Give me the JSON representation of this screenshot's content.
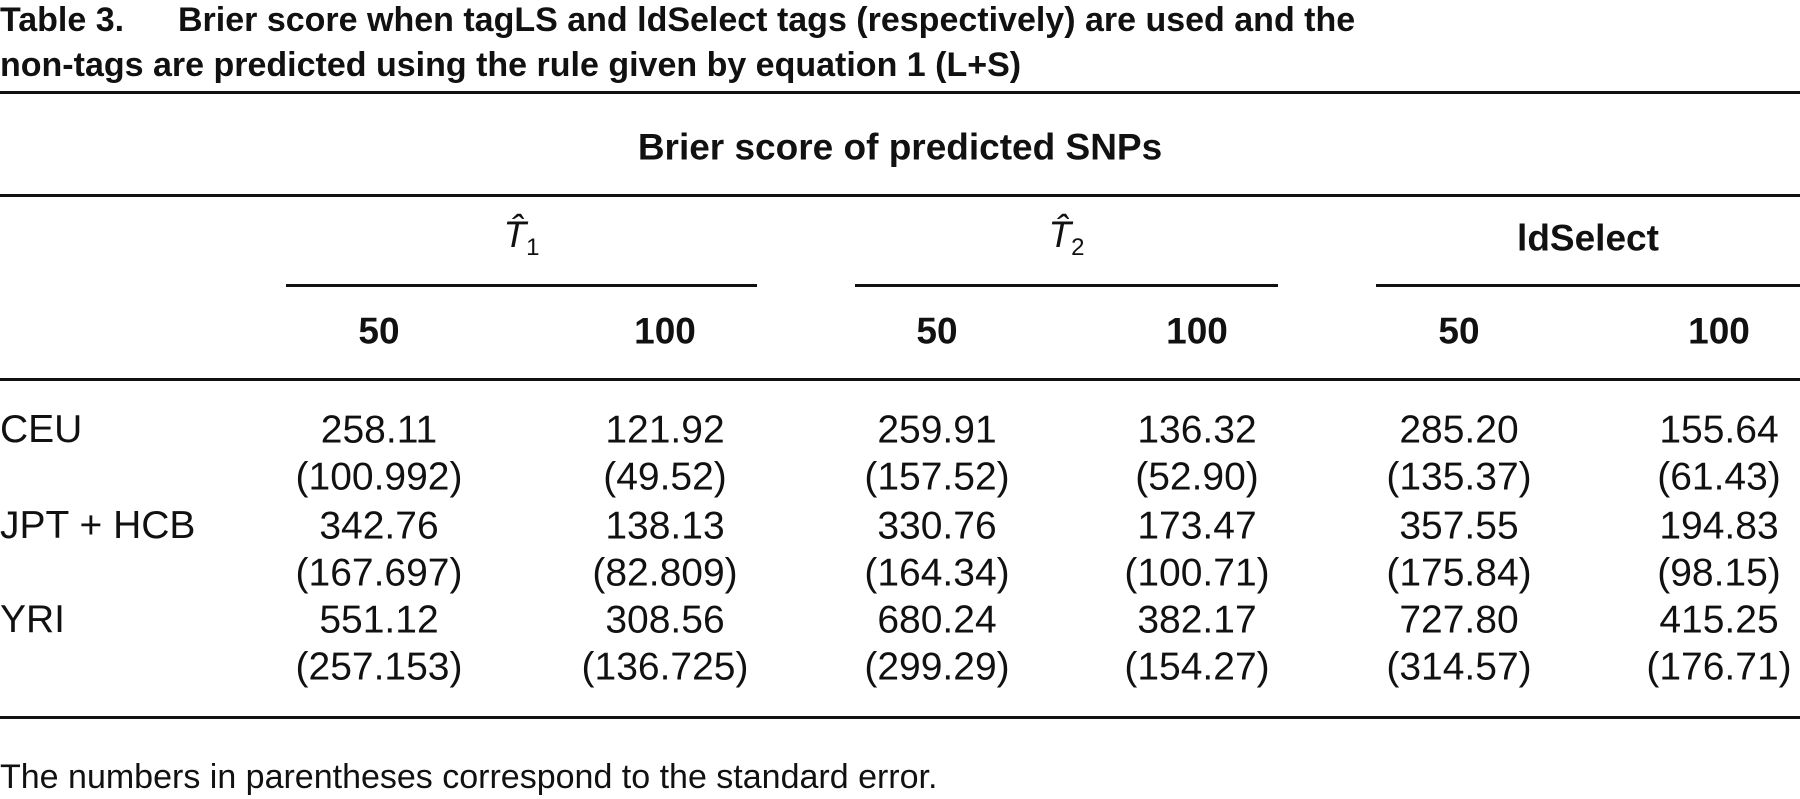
{
  "caption": {
    "label": "Table 3.",
    "title_line1": "Brier score when tagLS and ldSelect tags (respectively) are used and the",
    "title_line2": "non-tags are predicted using the rule given by equation 1 (L+S)"
  },
  "table": {
    "spanner": "Brier score of predicted SNPs",
    "groups": [
      {
        "label": "T̂",
        "sub": "1"
      },
      {
        "label": "T̂",
        "sub": "2"
      },
      {
        "label": "ldSelect"
      }
    ],
    "subheaders": [
      "50",
      "100",
      "50",
      "100",
      "50",
      "100"
    ],
    "rows": [
      {
        "label": "CEU",
        "values": [
          "258.11",
          "121.92",
          "259.91",
          "136.32",
          "285.20",
          "155.64"
        ],
        "errors": [
          "(100.992)",
          "(49.52)",
          "(157.52)",
          "(52.90)",
          "(135.37)",
          "(61.43)"
        ]
      },
      {
        "label": "JPT + HCB",
        "values": [
          "342.76",
          "138.13",
          "330.76",
          "173.47",
          "357.55",
          "194.83"
        ],
        "errors": [
          "(167.697)",
          "(82.809)",
          "(164.34)",
          "(100.71)",
          "(175.84)",
          "(98.15)"
        ]
      },
      {
        "label": "YRI",
        "values": [
          "551.12",
          "308.56",
          "680.24",
          "382.17",
          "727.80",
          "415.25"
        ],
        "errors": [
          "(257.153)",
          "(136.725)",
          "(299.29)",
          "(154.27)",
          "(314.57)",
          "(176.71)"
        ]
      }
    ]
  },
  "footnote": "The numbers in parentheses correspond to the standard error."
}
